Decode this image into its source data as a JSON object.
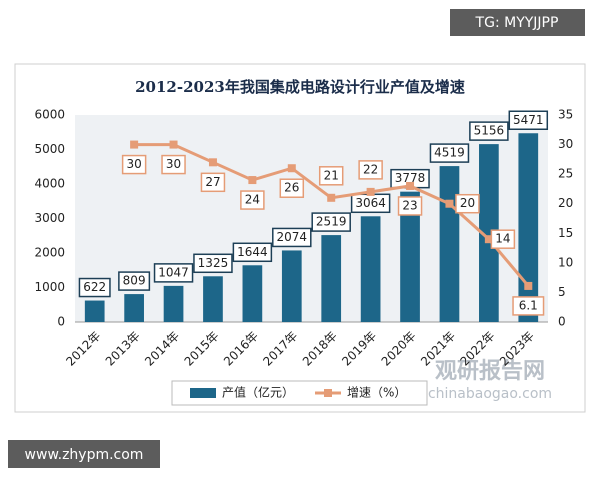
{
  "watermarks": {
    "top": "TG: MYYJJPP",
    "bottom": "www.zhypm.com",
    "brand": "观研报告网",
    "brand_url": "chinabaogao.com"
  },
  "chart_data": {
    "type": "bar-line",
    "title": "2012-2023年我国集成电路设计行业产值及增速",
    "categories": [
      "2012年",
      "2013年",
      "2014年",
      "2015年",
      "2016年",
      "2017年",
      "2018年",
      "2019年",
      "2020年",
      "2021年",
      "2022年",
      "2023年"
    ],
    "series": [
      {
        "name": "产值（亿元）",
        "color": "#1d6689",
        "type": "bar",
        "values": [
          622,
          809,
          1047,
          1325,
          1644,
          2074,
          2519,
          3064,
          3778,
          4519,
          5156,
          5471
        ]
      },
      {
        "name": "增速（%）",
        "color": "#e59c76",
        "type": "line",
        "axis": "y2",
        "values": [
          null,
          30,
          30,
          27,
          24,
          26,
          21,
          22,
          23,
          20,
          14,
          6.1
        ]
      }
    ],
    "ylim": [
      0,
      6000
    ],
    "yticks": [
      0,
      1000,
      2000,
      3000,
      4000,
      5000,
      6000
    ],
    "y2lim": [
      0,
      35
    ],
    "y2ticks": [
      0,
      5,
      10,
      15,
      20,
      25,
      30,
      35
    ],
    "grid": false,
    "legend": "bottom"
  }
}
